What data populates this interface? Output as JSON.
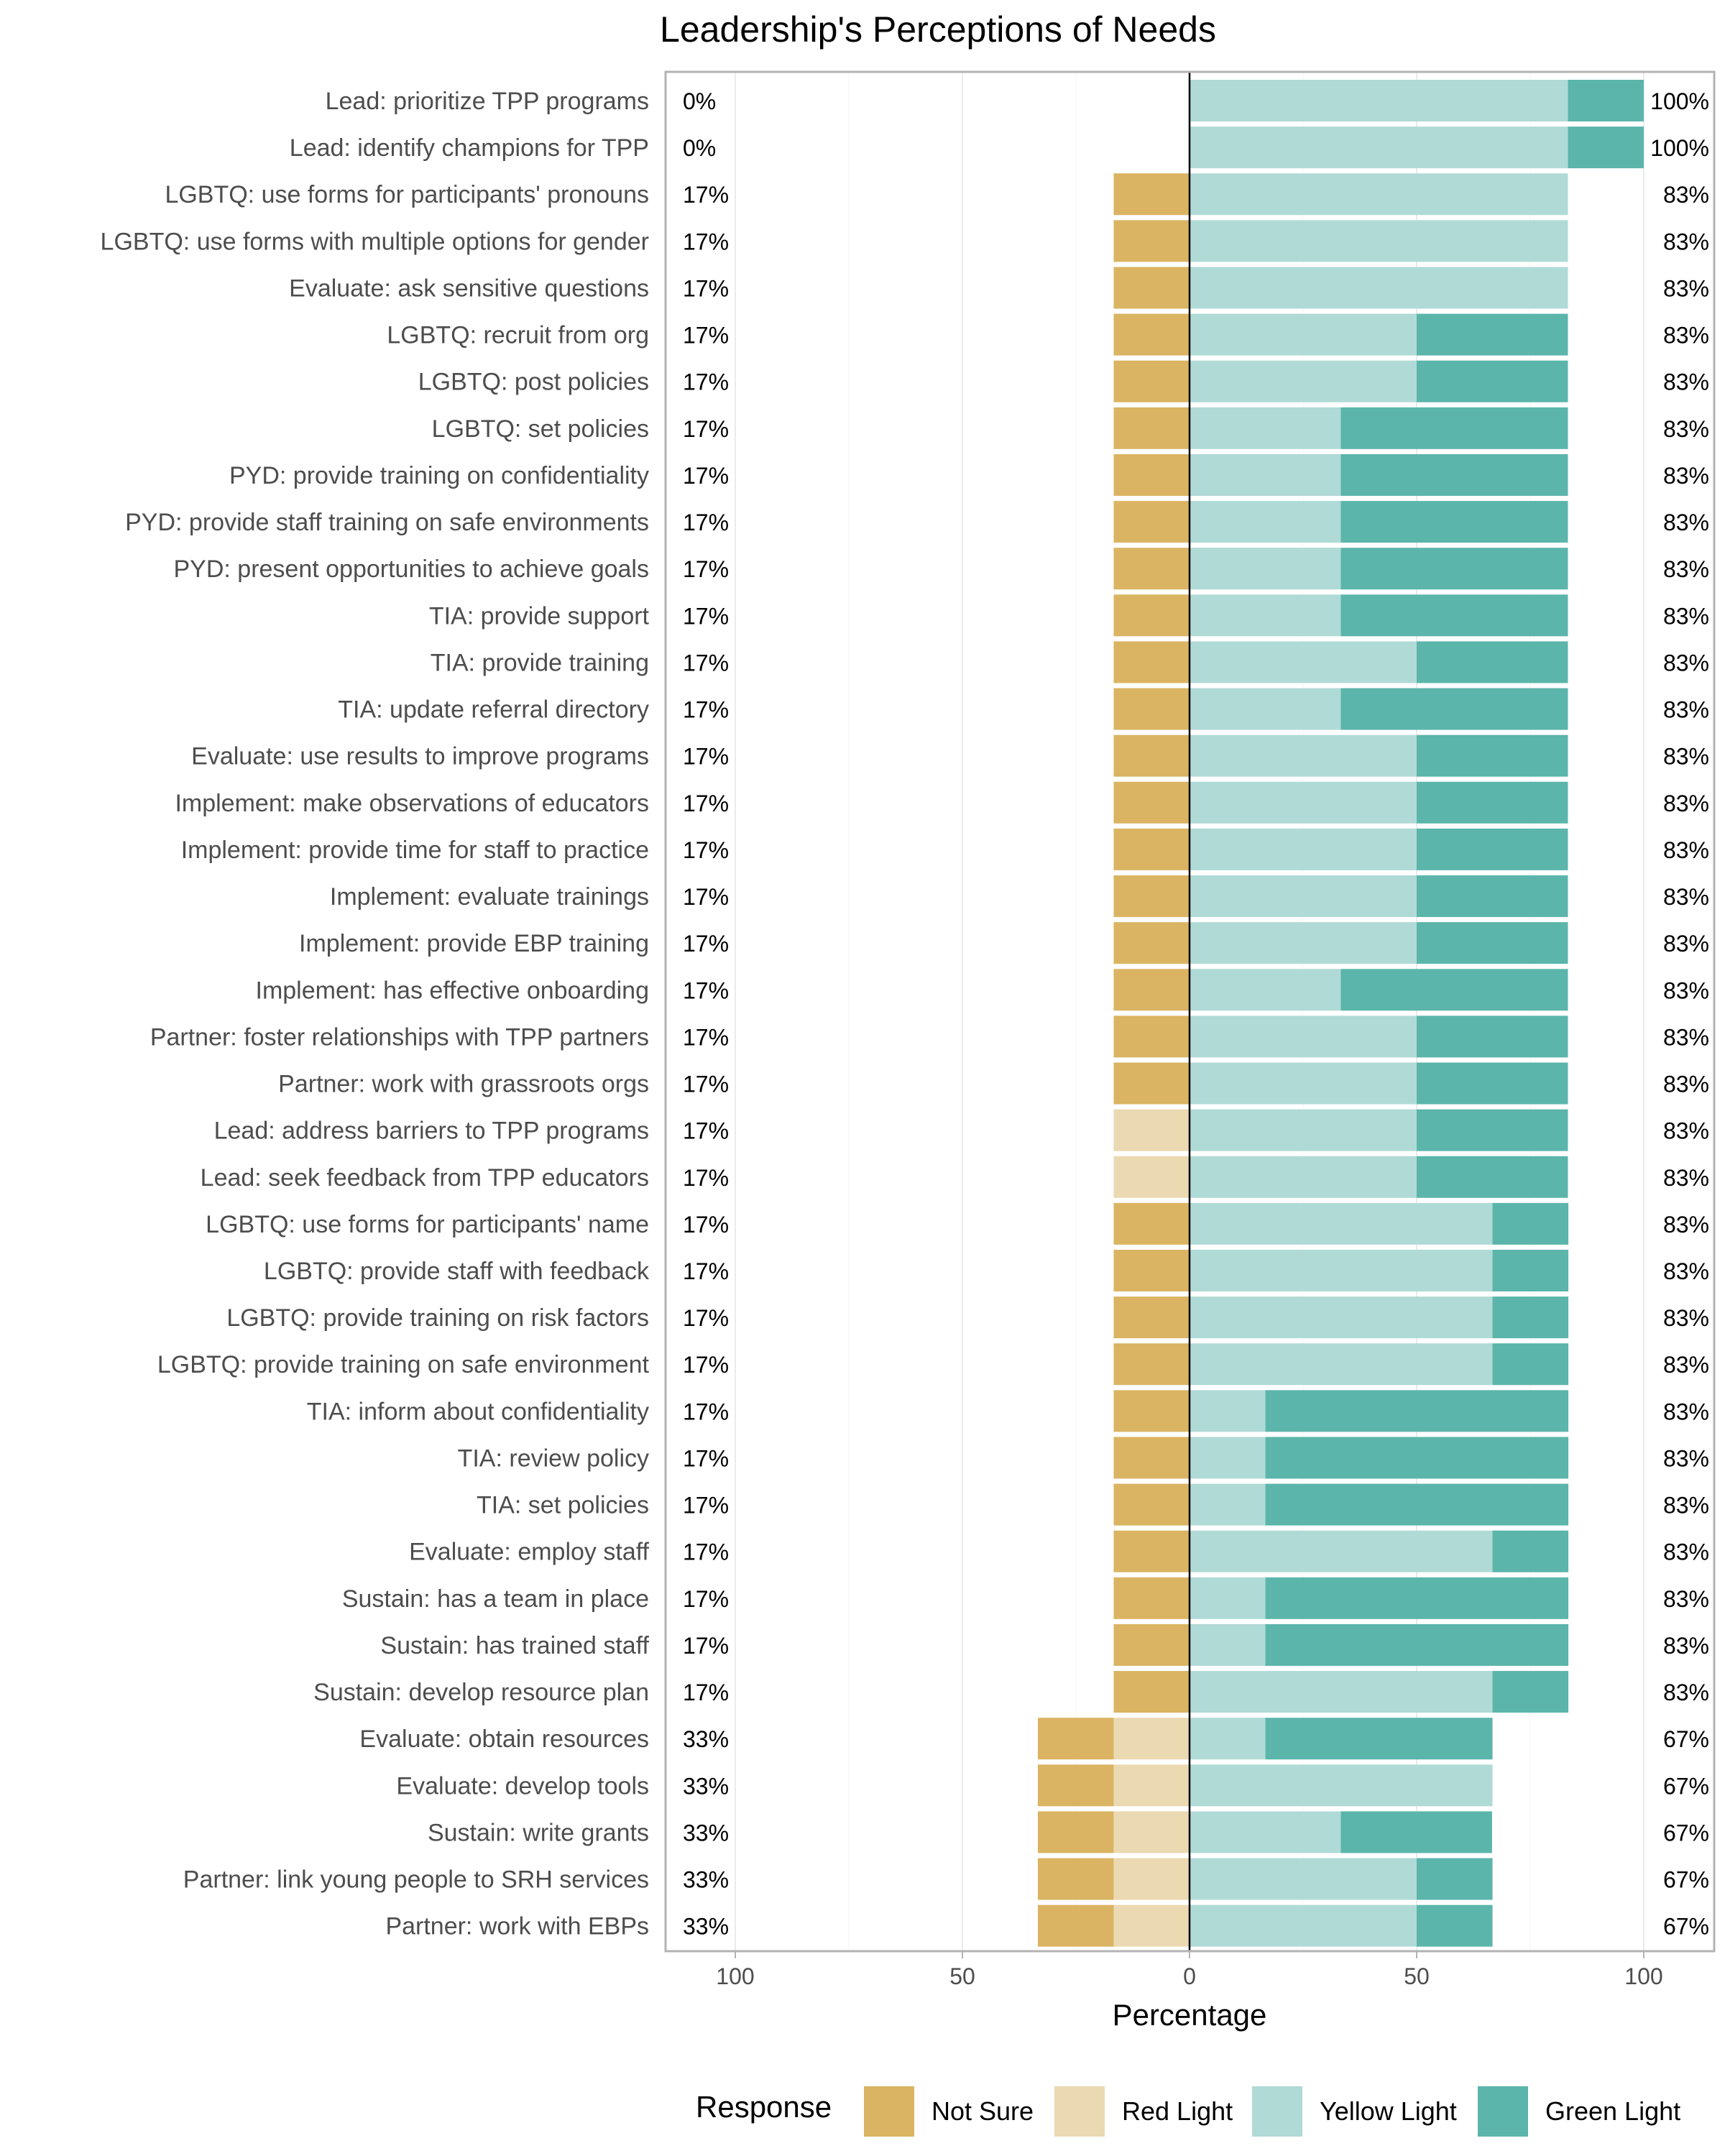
{
  "chart_data": {
    "type": "bar",
    "orientation": "horizontal",
    "stacked": "diverging",
    "title": "Leadership's Perceptions of Needs",
    "xlabel": "Percentage",
    "ylabel": "",
    "xlim": [
      -100,
      100
    ],
    "xticks": [
      -100,
      -50,
      0,
      50,
      100
    ],
    "xtick_labels": [
      "100",
      "50",
      "0",
      "50",
      "100"
    ],
    "grid": true,
    "legend_title": "Response",
    "legend_position": "bottom",
    "series": [
      {
        "name": "Not Sure",
        "color": "#dab462",
        "side": "negative"
      },
      {
        "name": "Red Light",
        "color": "#ebd9b2",
        "side": "negative"
      },
      {
        "name": "Yellow Light",
        "color": "#b0dad6",
        "side": "positive"
      },
      {
        "name": "Green Light",
        "color": "#5bb5ab",
        "side": "positive"
      }
    ],
    "rows": [
      {
        "label": "Lead: prioritize TPP programs",
        "not_sure": 0,
        "red": 0,
        "yellow": 83.3,
        "green": 16.7,
        "left_pct": "0%",
        "right_pct": "100%"
      },
      {
        "label": "Lead: identify champions for TPP",
        "not_sure": 0,
        "red": 0,
        "yellow": 83.3,
        "green": 16.7,
        "left_pct": "0%",
        "right_pct": "100%"
      },
      {
        "label": "LGBTQ: use forms for participants' pronouns",
        "not_sure": 16.7,
        "red": 0,
        "yellow": 83.3,
        "green": 0,
        "left_pct": "17%",
        "right_pct": "83%"
      },
      {
        "label": "LGBTQ: use forms with multiple options for gender",
        "not_sure": 16.7,
        "red": 0,
        "yellow": 83.3,
        "green": 0,
        "left_pct": "17%",
        "right_pct": "83%"
      },
      {
        "label": "Evaluate: ask sensitive questions",
        "not_sure": 16.7,
        "red": 0,
        "yellow": 83.3,
        "green": 0,
        "left_pct": "17%",
        "right_pct": "83%"
      },
      {
        "label": "LGBTQ: recruit from org",
        "not_sure": 16.7,
        "red": 0,
        "yellow": 50,
        "green": 33.3,
        "left_pct": "17%",
        "right_pct": "83%"
      },
      {
        "label": "LGBTQ: post policies",
        "not_sure": 16.7,
        "red": 0,
        "yellow": 50,
        "green": 33.3,
        "left_pct": "17%",
        "right_pct": "83%"
      },
      {
        "label": "LGBTQ: set policies",
        "not_sure": 16.7,
        "red": 0,
        "yellow": 33.3,
        "green": 50,
        "left_pct": "17%",
        "right_pct": "83%"
      },
      {
        "label": "PYD: provide training on confidentiality",
        "not_sure": 16.7,
        "red": 0,
        "yellow": 33.3,
        "green": 50,
        "left_pct": "17%",
        "right_pct": "83%"
      },
      {
        "label": "PYD: provide staff training on safe environments",
        "not_sure": 16.7,
        "red": 0,
        "yellow": 33.3,
        "green": 50,
        "left_pct": "17%",
        "right_pct": "83%"
      },
      {
        "label": "PYD: present opportunities to achieve goals",
        "not_sure": 16.7,
        "red": 0,
        "yellow": 33.3,
        "green": 50,
        "left_pct": "17%",
        "right_pct": "83%"
      },
      {
        "label": "TIA: provide support",
        "not_sure": 16.7,
        "red": 0,
        "yellow": 33.3,
        "green": 50,
        "left_pct": "17%",
        "right_pct": "83%"
      },
      {
        "label": "TIA: provide training",
        "not_sure": 16.7,
        "red": 0,
        "yellow": 50,
        "green": 33.3,
        "left_pct": "17%",
        "right_pct": "83%"
      },
      {
        "label": "TIA: update referral directory",
        "not_sure": 16.7,
        "red": 0,
        "yellow": 33.3,
        "green": 50,
        "left_pct": "17%",
        "right_pct": "83%"
      },
      {
        "label": "Evaluate: use results to improve programs",
        "not_sure": 16.7,
        "red": 0,
        "yellow": 50,
        "green": 33.3,
        "left_pct": "17%",
        "right_pct": "83%"
      },
      {
        "label": "Implement: make observations of educators",
        "not_sure": 16.7,
        "red": 0,
        "yellow": 50,
        "green": 33.3,
        "left_pct": "17%",
        "right_pct": "83%"
      },
      {
        "label": "Implement: provide time for staff to practice",
        "not_sure": 16.7,
        "red": 0,
        "yellow": 50,
        "green": 33.3,
        "left_pct": "17%",
        "right_pct": "83%"
      },
      {
        "label": "Implement: evaluate trainings",
        "not_sure": 16.7,
        "red": 0,
        "yellow": 50,
        "green": 33.3,
        "left_pct": "17%",
        "right_pct": "83%"
      },
      {
        "label": "Implement: provide EBP training",
        "not_sure": 16.7,
        "red": 0,
        "yellow": 50,
        "green": 33.3,
        "left_pct": "17%",
        "right_pct": "83%"
      },
      {
        "label": "Implement: has effective onboarding",
        "not_sure": 16.7,
        "red": 0,
        "yellow": 33.3,
        "green": 50,
        "left_pct": "17%",
        "right_pct": "83%"
      },
      {
        "label": "Partner: foster relationships with TPP partners",
        "not_sure": 16.7,
        "red": 0,
        "yellow": 50,
        "green": 33.3,
        "left_pct": "17%",
        "right_pct": "83%"
      },
      {
        "label": "Partner: work with grassroots orgs",
        "not_sure": 16.7,
        "red": 0,
        "yellow": 50,
        "green": 33.3,
        "left_pct": "17%",
        "right_pct": "83%"
      },
      {
        "label": "Lead: address barriers to TPP programs",
        "not_sure": 0,
        "red": 16.7,
        "yellow": 50,
        "green": 33.3,
        "left_pct": "17%",
        "right_pct": "83%"
      },
      {
        "label": "Lead: seek feedback from TPP educators",
        "not_sure": 0,
        "red": 16.7,
        "yellow": 50,
        "green": 33.3,
        "left_pct": "17%",
        "right_pct": "83%"
      },
      {
        "label": "LGBTQ: use forms for participants' name",
        "not_sure": 16.7,
        "red": 0,
        "yellow": 66.7,
        "green": 16.7,
        "left_pct": "17%",
        "right_pct": "83%"
      },
      {
        "label": "LGBTQ: provide staff with feedback",
        "not_sure": 16.7,
        "red": 0,
        "yellow": 66.7,
        "green": 16.7,
        "left_pct": "17%",
        "right_pct": "83%"
      },
      {
        "label": "LGBTQ: provide training on risk factors",
        "not_sure": 16.7,
        "red": 0,
        "yellow": 66.7,
        "green": 16.7,
        "left_pct": "17%",
        "right_pct": "83%"
      },
      {
        "label": "LGBTQ: provide training on safe environment",
        "not_sure": 16.7,
        "red": 0,
        "yellow": 66.7,
        "green": 16.7,
        "left_pct": "17%",
        "right_pct": "83%"
      },
      {
        "label": "TIA: inform about confidentiality",
        "not_sure": 16.7,
        "red": 0,
        "yellow": 16.7,
        "green": 66.7,
        "left_pct": "17%",
        "right_pct": "83%"
      },
      {
        "label": "TIA: review policy",
        "not_sure": 16.7,
        "red": 0,
        "yellow": 16.7,
        "green": 66.7,
        "left_pct": "17%",
        "right_pct": "83%"
      },
      {
        "label": "TIA: set policies",
        "not_sure": 16.7,
        "red": 0,
        "yellow": 16.7,
        "green": 66.7,
        "left_pct": "17%",
        "right_pct": "83%"
      },
      {
        "label": "Evaluate: employ staff",
        "not_sure": 16.7,
        "red": 0,
        "yellow": 66.7,
        "green": 16.7,
        "left_pct": "17%",
        "right_pct": "83%"
      },
      {
        "label": "Sustain: has a team in place",
        "not_sure": 16.7,
        "red": 0,
        "yellow": 16.7,
        "green": 66.7,
        "left_pct": "17%",
        "right_pct": "83%"
      },
      {
        "label": "Sustain: has trained staff",
        "not_sure": 16.7,
        "red": 0,
        "yellow": 16.7,
        "green": 66.7,
        "left_pct": "17%",
        "right_pct": "83%"
      },
      {
        "label": "Sustain: develop resource plan",
        "not_sure": 16.7,
        "red": 0,
        "yellow": 66.7,
        "green": 16.7,
        "left_pct": "17%",
        "right_pct": "83%"
      },
      {
        "label": "Evaluate: obtain resources",
        "not_sure": 16.7,
        "red": 16.7,
        "yellow": 16.7,
        "green": 50,
        "left_pct": "33%",
        "right_pct": "67%"
      },
      {
        "label": "Evaluate: develop tools",
        "not_sure": 16.7,
        "red": 16.7,
        "yellow": 66.7,
        "green": 0,
        "left_pct": "33%",
        "right_pct": "67%"
      },
      {
        "label": "Sustain: write grants",
        "not_sure": 16.7,
        "red": 16.7,
        "yellow": 33.3,
        "green": 33.3,
        "left_pct": "33%",
        "right_pct": "67%"
      },
      {
        "label": "Partner: link young people to SRH services",
        "not_sure": 16.7,
        "red": 16.7,
        "yellow": 50,
        "green": 16.7,
        "left_pct": "33%",
        "right_pct": "67%"
      },
      {
        "label": "Partner: work with EBPs",
        "not_sure": 16.7,
        "red": 16.7,
        "yellow": 50,
        "green": 16.7,
        "left_pct": "33%",
        "right_pct": "67%"
      }
    ]
  }
}
